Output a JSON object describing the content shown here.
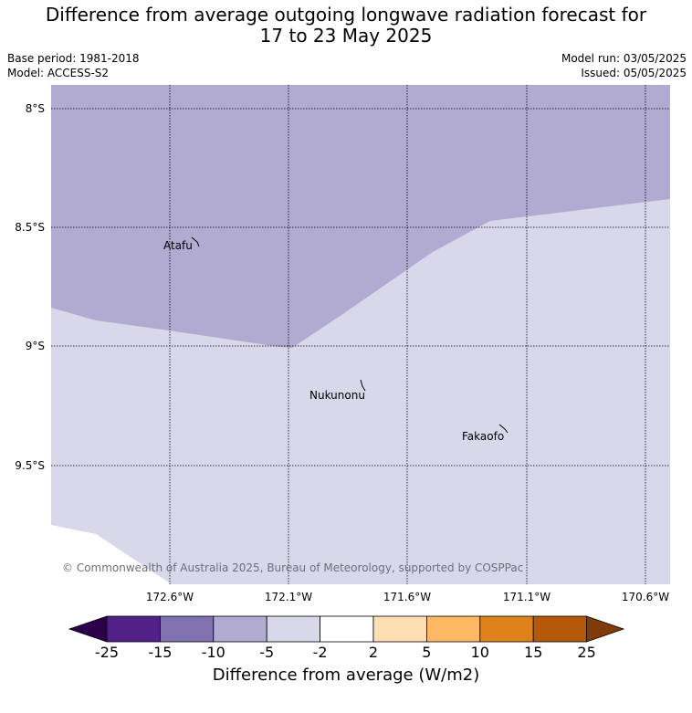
{
  "header": {
    "title_line1": "Difference from average outgoing longwave radiation forecast for",
    "title_line2": "17 to 23 May 2025",
    "base_period": "Base period: 1981-2018",
    "model": "Model: ACCESS-S2",
    "model_run": "Model run: 03/05/2025",
    "issued": "Issued: 05/05/2025"
  },
  "map": {
    "lat_labels": [
      "8°S",
      "8.5°S",
      "9°S",
      "9.5°S"
    ],
    "lon_labels": [
      "172.6°W",
      "172.1°W",
      "171.6°W",
      "171.1°W",
      "170.6°W"
    ],
    "places": [
      {
        "name": "Atafu"
      },
      {
        "name": "Nukunonu"
      },
      {
        "name": "Fakaofo"
      }
    ],
    "copyright": "© Commonwealth of Australia 2025, Bureau of Meteorology, supported by COSPPac",
    "colors": {
      "band_-10_-5": "#b1abd2",
      "band_-5_-2": "#d8d8ea"
    }
  },
  "colorbar": {
    "title": "Difference from average (W/m2)",
    "tick_labels": [
      "-25",
      "-15",
      "-10",
      "-5",
      "-2",
      "2",
      "5",
      "10",
      "15",
      "25"
    ],
    "colors": [
      "#522188",
      "#7f72ae",
      "#b1abd2",
      "#d8d8ea",
      "#ffffff",
      "#fedfb3",
      "#fcb862",
      "#e0821b",
      "#b45809"
    ],
    "under_color": "#2d004b",
    "over_color": "#7f3b08"
  }
}
